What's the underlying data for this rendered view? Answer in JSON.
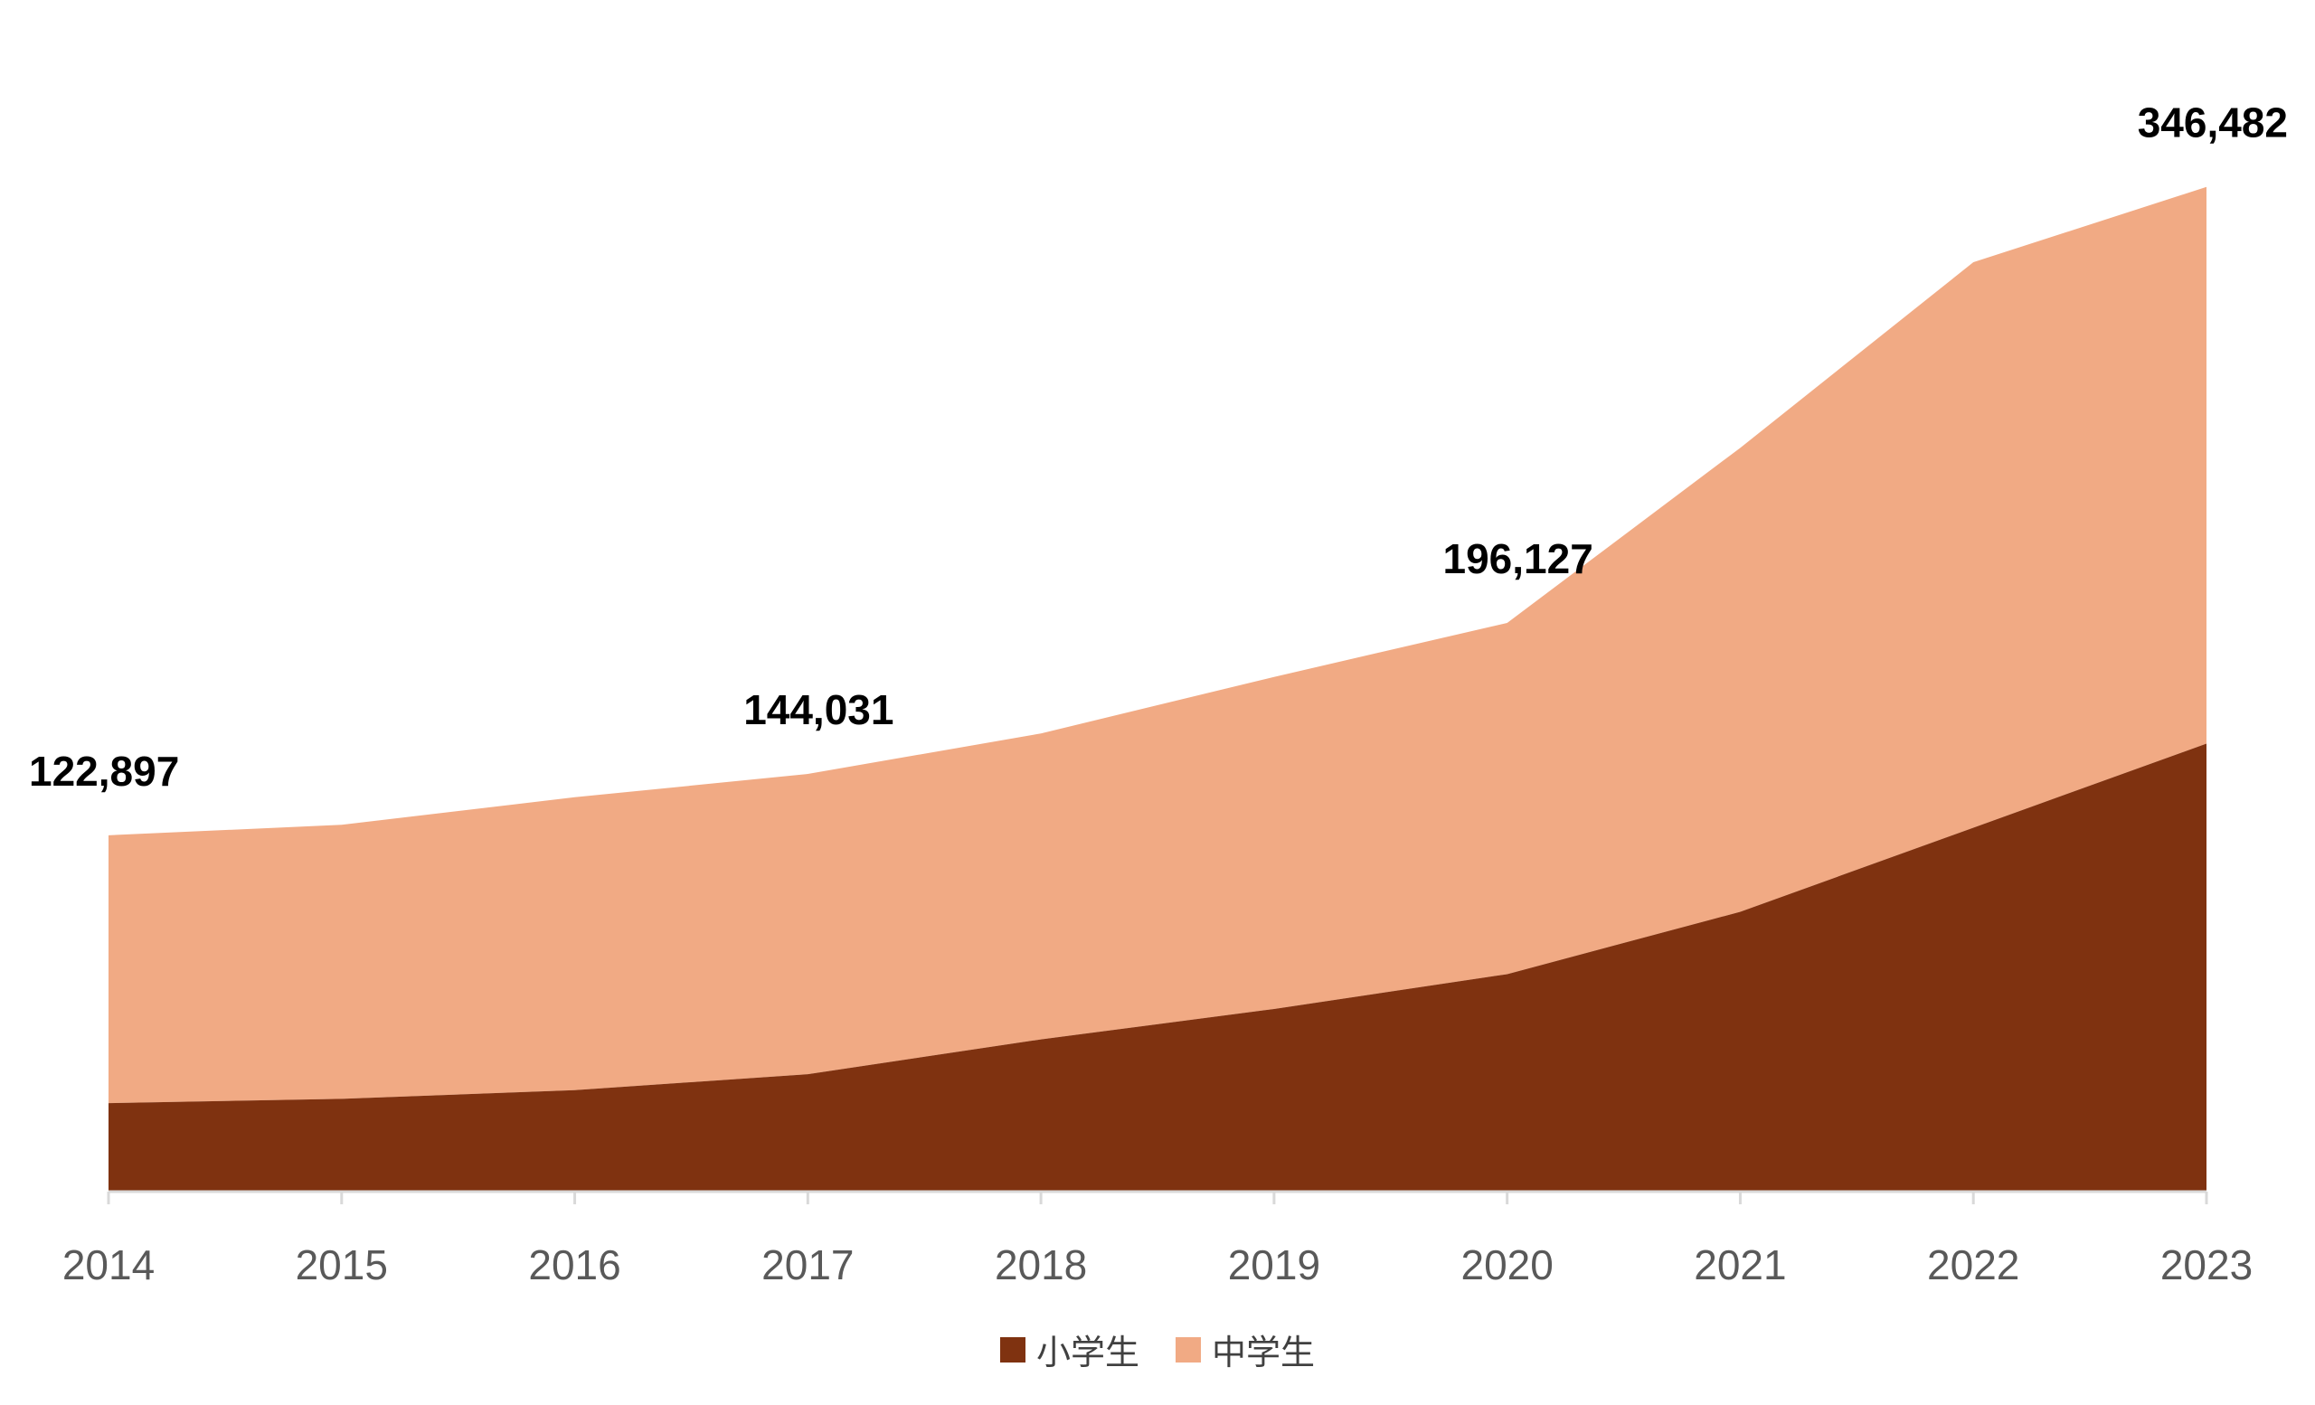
{
  "chart_data": {
    "type": "area",
    "stacked": true,
    "categories": [
      "2014",
      "2015",
      "2016",
      "2017",
      "2018",
      "2019",
      "2020",
      "2021",
      "2022",
      "2023"
    ],
    "series": [
      {
        "name": "小学生",
        "color": "#7f3210",
        "values": [
          30500,
          32000,
          35000,
          40500,
          52500,
          63000,
          75000,
          96500,
          125500,
          154500
        ]
      },
      {
        "name": "中学生",
        "color": "#f1aa84",
        "values": [
          92397,
          94500,
          101000,
          103531,
          105500,
          114500,
          121127,
          160000,
          195000,
          191982
        ]
      }
    ],
    "totals": [
      122897,
      126500,
      136000,
      144031,
      158000,
      177500,
      196127,
      256500,
      320500,
      346482
    ],
    "data_labels": [
      {
        "category": "2014",
        "text": "122,897"
      },
      {
        "category": "2017",
        "text": "144,031"
      },
      {
        "category": "2020",
        "text": "196,127"
      },
      {
        "category": "2023",
        "text": "346,482"
      }
    ],
    "ylim": [
      0,
      410000
    ],
    "grid": false,
    "legend_position": "bottom-center"
  }
}
